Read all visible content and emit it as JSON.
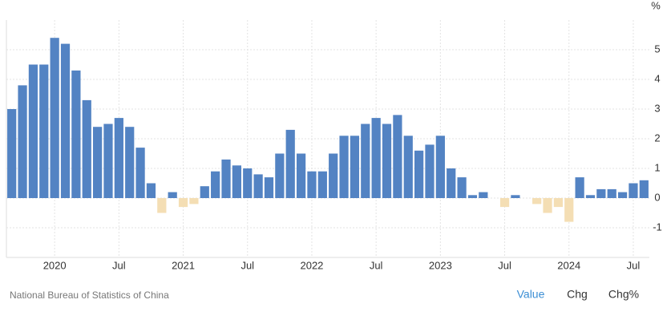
{
  "chart_data": {
    "type": "bar",
    "unit": "%",
    "source": "National Bureau of Statistics of China",
    "buttons": [
      "Value",
      "Chg",
      "Chg%"
    ],
    "categories": [
      null,
      null,
      null,
      null,
      "2020",
      null,
      null,
      null,
      null,
      null,
      "Jul",
      null,
      null,
      null,
      null,
      null,
      "2021",
      null,
      null,
      null,
      null,
      null,
      "Jul",
      null,
      null,
      null,
      null,
      null,
      "2022",
      null,
      null,
      null,
      null,
      null,
      "Jul",
      null,
      null,
      null,
      null,
      null,
      "2023",
      null,
      null,
      null,
      null,
      null,
      "Jul",
      null,
      null,
      null,
      null,
      null,
      "2024",
      null,
      null,
      null,
      null,
      null,
      "Jul",
      null
    ],
    "values": [
      3.0,
      3.8,
      4.5,
      4.5,
      5.4,
      5.2,
      4.3,
      3.3,
      2.4,
      2.5,
      2.7,
      2.4,
      1.7,
      0.5,
      -0.5,
      0.2,
      -0.3,
      -0.2,
      0.4,
      0.9,
      1.3,
      1.1,
      1.0,
      0.8,
      0.7,
      1.5,
      2.3,
      1.5,
      0.9,
      0.9,
      1.5,
      2.1,
      2.1,
      2.5,
      2.7,
      2.5,
      2.8,
      2.1,
      1.6,
      1.8,
      2.1,
      1.0,
      0.7,
      0.1,
      0.2,
      0.0,
      -0.3,
      0.1,
      0.0,
      -0.2,
      -0.5,
      -0.3,
      -0.8,
      0.7,
      0.1,
      0.3,
      0.3,
      0.2,
      0.5,
      0.6
    ],
    "color": "#5383c3",
    "negative_color": "#f4deb4",
    "ylim": [
      -2,
      6
    ],
    "yticks": [
      -1,
      0,
      1,
      2,
      3,
      4,
      5
    ],
    "grid": true
  }
}
